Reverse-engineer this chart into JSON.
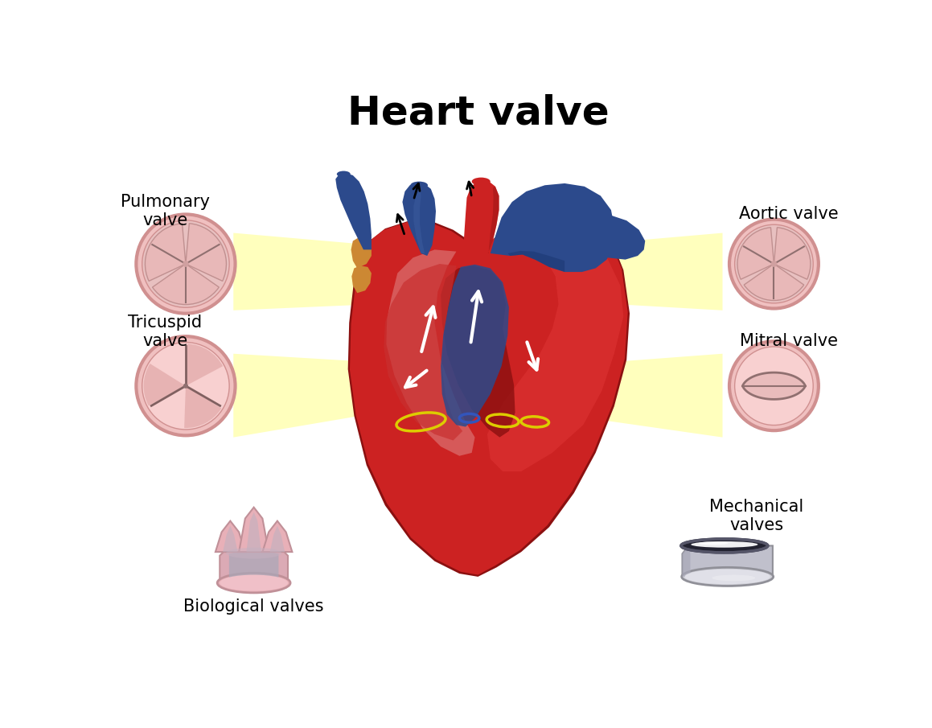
{
  "title": "Heart valve",
  "title_fontsize": 36,
  "title_fontweight": "bold",
  "background_color": "#ffffff",
  "labels": {
    "pulmonary_valve": "Pulmonary\nvalve",
    "aortic_valve": "Aortic valve",
    "tricuspid_valve": "Tricuspid\nvalve",
    "mitral_valve": "Mitral valve",
    "biological_valves": "Biological valves",
    "mechanical_valves": "Mechanical\nvalves"
  },
  "label_fontsize": 15,
  "colors": {
    "heart_red": "#cc2222",
    "heart_dark_red": "#8b1010",
    "heart_mid_red": "#aa2020",
    "heart_light": "#d45050",
    "vein_blue": "#2c4a8c",
    "vein_blue2": "#3a5a9c",
    "aorta_red": "#cc2222",
    "pink_inner": "#e8a0a0",
    "pink_outer": "#f0c0c0",
    "valve_ring": "#e8b0b0",
    "valve_line": "#907070",
    "yellow": "#ffff88",
    "yellow2": "#eeee44",
    "gold": "#ccaa44",
    "white": "#ffffff",
    "black": "#111111",
    "gray_silver": "#c8c8d0",
    "gray_dark": "#666678",
    "biopink": "#e8b0b8",
    "biogray": "#a8a8b8"
  }
}
